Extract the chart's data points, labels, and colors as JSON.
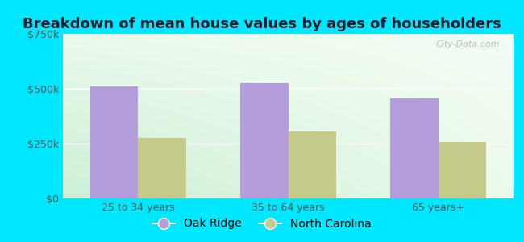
{
  "title": "Breakdown of mean house values by ages of householders",
  "categories": [
    "25 to 34 years",
    "35 to 64 years",
    "65 years+"
  ],
  "oak_ridge_values": [
    510000,
    525000,
    455000
  ],
  "nc_values": [
    275000,
    305000,
    258000
  ],
  "oak_ridge_color": "#b39ddb",
  "nc_color": "#c5c98a",
  "ylim": [
    0,
    750000
  ],
  "yticks": [
    0,
    250000,
    500000,
    750000
  ],
  "ytick_labels": [
    "$0",
    "$250k",
    "$500k",
    "$750k"
  ],
  "legend_labels": [
    "Oak Ridge",
    "North Carolina"
  ],
  "bar_width": 0.32,
  "title_fontsize": 13,
  "tick_fontsize": 9,
  "legend_fontsize": 10,
  "outer_bg": "#00e8ff",
  "plot_bg_left": "#c8e8c8",
  "plot_bg_right": "#f0f8f0",
  "watermark": "City-Data.com"
}
